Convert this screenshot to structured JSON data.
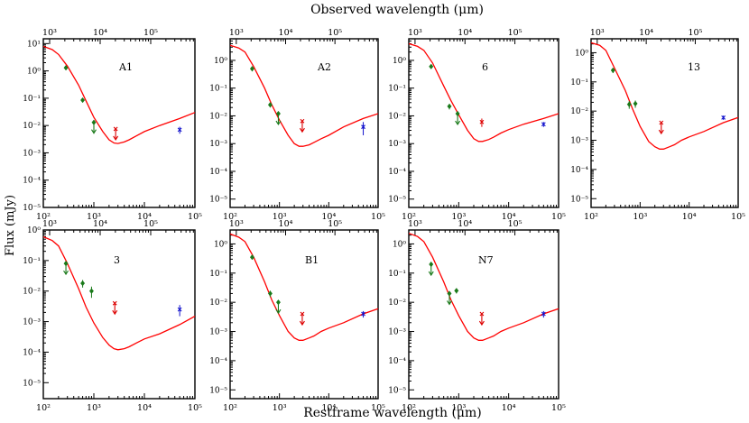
{
  "figure": {
    "top_label": "Observed wavelength (μm)",
    "bottom_label": "Restframe wavelength (μm)",
    "y_label": "Flux (mJy)"
  },
  "chart_data": [
    {
      "type": "line",
      "name": "A1",
      "title": "A1",
      "xlabel": "Restframe wavelength (μm)",
      "x2label": "Observed wavelength (μm)",
      "ylabel": "Flux (mJy)",
      "xscale": "log",
      "yscale": "log",
      "xlim": [
        100,
        100000
      ],
      "ylim": [
        1e-05,
        15
      ],
      "bottom_ticks": [
        "10^2",
        "10^3",
        "10^4",
        "10^5"
      ],
      "top_ticks": [
        "10^3",
        "10^4",
        "10^5"
      ],
      "y_ticks": [
        "10^1",
        "10^0",
        "10^-1",
        "10^-2",
        "10^-3",
        "10^-4",
        "10^-5"
      ],
      "model_curve": {
        "color": "#ff0000",
        "x": [
          100,
          150,
          200,
          300,
          500,
          700,
          1000,
          1500,
          2000,
          2500,
          3000,
          4000,
          5000,
          7000,
          10000,
          20000,
          50000,
          100000
        ],
        "y": [
          8,
          6,
          4,
          1.5,
          0.3,
          0.08,
          0.02,
          0.006,
          0.003,
          0.0023,
          0.0022,
          0.0025,
          0.003,
          0.0042,
          0.006,
          0.01,
          0.018,
          0.03
        ]
      },
      "green_points": [
        {
          "x": 280,
          "y": 1.3,
          "err": 0.15
        },
        {
          "x": 600,
          "y": 0.085,
          "err": 0.01
        },
        {
          "x": 1000,
          "y": 0.013,
          "upper_limit": true
        }
      ],
      "red_point": {
        "x": 2700,
        "y": 0.0075,
        "upper_limit": true
      },
      "blue_point": {
        "x": 50000,
        "y": 0.007,
        "err": 0.002
      }
    },
    {
      "type": "line",
      "name": "A2",
      "title": "A2",
      "xscale": "log",
      "yscale": "log",
      "xlim": [
        100,
        100000
      ],
      "ylim": [
        5e-06,
        6
      ],
      "bottom_ticks": [
        "10^2",
        "10^3",
        "10^4",
        "10^5"
      ],
      "top_ticks": [
        "10^3",
        "10^4",
        "10^5"
      ],
      "y_ticks": [
        "10^0",
        "10^-1",
        "10^-2",
        "10^-3",
        "10^-4",
        "10^-5"
      ],
      "model_curve": {
        "color": "#ff0000",
        "x": [
          100,
          150,
          200,
          300,
          500,
          700,
          1000,
          1500,
          2000,
          2500,
          3000,
          4000,
          5000,
          7000,
          10000,
          20000,
          50000,
          100000
        ],
        "y": [
          3.5,
          2.8,
          2,
          0.6,
          0.1,
          0.025,
          0.007,
          0.002,
          0.001,
          0.0008,
          0.0008,
          0.0009,
          0.0011,
          0.0015,
          0.002,
          0.004,
          0.008,
          0.012
        ]
      },
      "green_points": [
        {
          "x": 280,
          "y": 0.5,
          "err": 0.1
        },
        {
          "x": 650,
          "y": 0.025,
          "err": 0.005
        },
        {
          "x": 950,
          "y": 0.012,
          "upper_limit": true
        }
      ],
      "red_point": {
        "x": 2900,
        "y": 0.0065,
        "upper_limit": true
      },
      "blue_point": {
        "x": 50000,
        "y": 0.004,
        "err": 0.002
      }
    },
    {
      "type": "line",
      "name": "6",
      "title": "6",
      "xscale": "log",
      "yscale": "log",
      "xlim": [
        100,
        100000
      ],
      "ylim": [
        5e-06,
        6
      ],
      "bottom_ticks": [
        "10^2",
        "10^3",
        "10^4",
        "10^5"
      ],
      "top_ticks": [
        "10^3",
        "10^4",
        "10^5"
      ],
      "y_ticks": [
        "10^0",
        "10^-1",
        "10^-2",
        "10^-3",
        "10^-4",
        "10^-5"
      ],
      "model_curve": {
        "color": "#ff0000",
        "x": [
          100,
          150,
          200,
          300,
          500,
          700,
          1000,
          1500,
          2000,
          2500,
          3000,
          4000,
          5000,
          7000,
          10000,
          20000,
          50000,
          100000
        ],
        "y": [
          4,
          3.2,
          2.3,
          0.8,
          0.12,
          0.035,
          0.011,
          0.003,
          0.0015,
          0.0012,
          0.0012,
          0.0014,
          0.0017,
          0.0024,
          0.0032,
          0.005,
          0.008,
          0.012
        ]
      },
      "green_points": [
        {
          "x": 280,
          "y": 0.6,
          "err": 0.1
        },
        {
          "x": 650,
          "y": 0.022,
          "err": 0.005
        },
        {
          "x": 950,
          "y": 0.012,
          "upper_limit": true
        }
      ],
      "red_point": {
        "x": 2900,
        "y": 0.006,
        "err": 0.002
      },
      "blue_point": {
        "x": 50000,
        "y": 0.005,
        "err": 0.001
      }
    },
    {
      "type": "line",
      "name": "13",
      "title": "13",
      "xscale": "log",
      "yscale": "log",
      "xlim": [
        100,
        100000
      ],
      "ylim": [
        5e-06,
        3
      ],
      "bottom_ticks": [
        "10^2",
        "10^3",
        "10^4",
        "10^5"
      ],
      "top_ticks": [
        "10^3",
        "10^4",
        "10^5"
      ],
      "y_ticks": [
        "10^0",
        "10^-1",
        "10^-2",
        "10^-3",
        "10^-4",
        "10^-5"
      ],
      "model_curve": {
        "color": "#ff0000",
        "x": [
          100,
          150,
          200,
          300,
          500,
          700,
          1000,
          1500,
          2000,
          2500,
          3000,
          4000,
          5000,
          7000,
          10000,
          20000,
          50000,
          100000
        ],
        "y": [
          2.2,
          1.8,
          1.2,
          0.3,
          0.05,
          0.012,
          0.003,
          0.0009,
          0.0006,
          0.0005,
          0.0005,
          0.0006,
          0.0007,
          0.001,
          0.0013,
          0.002,
          0.004,
          0.006
        ]
      },
      "green_points": [
        {
          "x": 280,
          "y": 0.25,
          "err": 0.05
        },
        {
          "x": 600,
          "y": 0.017,
          "err": 0.005
        },
        {
          "x": 800,
          "y": 0.018,
          "err": 0.005
        }
      ],
      "red_point": {
        "x": 2700,
        "y": 0.004,
        "upper_limit": true
      },
      "blue_point": {
        "x": 50000,
        "y": 0.006,
        "err": 0.001
      }
    },
    {
      "type": "line",
      "name": "3",
      "title": "3",
      "xscale": "log",
      "yscale": "log",
      "xlim": [
        100,
        100000
      ],
      "ylim": [
        3e-06,
        1
      ],
      "bottom_ticks": [
        "10^2",
        "10^3",
        "10^4",
        "10^5"
      ],
      "top_ticks": [
        "10^3",
        "10^4",
        "10^5"
      ],
      "y_ticks": [
        "10^0",
        "10^-1",
        "10^-2",
        "10^-3",
        "10^-4",
        "10^-5"
      ],
      "model_curve": {
        "color": "#ff0000",
        "x": [
          100,
          150,
          200,
          300,
          500,
          700,
          1000,
          1500,
          2000,
          2500,
          3000,
          4000,
          5000,
          7000,
          10000,
          20000,
          50000,
          100000
        ],
        "y": [
          0.6,
          0.45,
          0.3,
          0.08,
          0.012,
          0.003,
          0.0009,
          0.0003,
          0.00017,
          0.00013,
          0.00012,
          0.00013,
          0.00015,
          0.0002,
          0.00027,
          0.0004,
          0.0008,
          0.0015
        ]
      },
      "green_points": [
        {
          "x": 280,
          "y": 0.08,
          "upper_limit": true
        },
        {
          "x": 600,
          "y": 0.018,
          "err": 0.005
        },
        {
          "x": 900,
          "y": 0.01,
          "err": 0.004
        }
      ],
      "red_point": {
        "x": 2600,
        "y": 0.004,
        "upper_limit": true
      },
      "blue_point": {
        "x": 50000,
        "y": 0.0025,
        "err": 0.001
      }
    },
    {
      "type": "line",
      "name": "B1",
      "title": "B1",
      "xscale": "log",
      "yscale": "log",
      "xlim": [
        100,
        100000
      ],
      "ylim": [
        5e-06,
        3
      ],
      "bottom_ticks": [
        "10^2",
        "10^3",
        "10^4",
        "10^5"
      ],
      "top_ticks": [
        "10^3",
        "10^4",
        "10^5"
      ],
      "y_ticks": [
        "10^0",
        "10^-1",
        "10^-2",
        "10^-3",
        "10^-4",
        "10^-5"
      ],
      "model_curve": {
        "color": "#ff0000",
        "x": [
          100,
          150,
          200,
          300,
          500,
          700,
          1000,
          1500,
          2000,
          2500,
          3000,
          4000,
          5000,
          7000,
          10000,
          20000,
          50000,
          100000
        ],
        "y": [
          2.2,
          1.7,
          1.2,
          0.35,
          0.05,
          0.012,
          0.0035,
          0.001,
          0.0006,
          0.0005,
          0.0005,
          0.0006,
          0.0007,
          0.001,
          0.0013,
          0.002,
          0.004,
          0.006
        ]
      },
      "green_points": [
        {
          "x": 280,
          "y": 0.35,
          "err": 0.05
        },
        {
          "x": 650,
          "y": 0.02,
          "err": 0.005
        },
        {
          "x": 950,
          "y": 0.01,
          "upper_limit": true
        }
      ],
      "red_point": {
        "x": 2900,
        "y": 0.004,
        "upper_limit": true
      },
      "blue_point": {
        "x": 50000,
        "y": 0.004,
        "err": 0.001
      }
    },
    {
      "type": "line",
      "name": "N7",
      "title": "N7",
      "xscale": "log",
      "yscale": "log",
      "xlim": [
        100,
        100000
      ],
      "ylim": [
        5e-06,
        3
      ],
      "bottom_ticks": [
        "10^2",
        "10^3",
        "10^4",
        "10^5"
      ],
      "top_ticks": [
        "10^3",
        "10^4",
        "10^5"
      ],
      "y_ticks": [
        "10^0",
        "10^-1",
        "10^-2",
        "10^-3",
        "10^-4",
        "10^-5"
      ],
      "model_curve": {
        "color": "#ff0000",
        "x": [
          100,
          150,
          200,
          300,
          500,
          700,
          1000,
          1500,
          2000,
          2500,
          3000,
          4000,
          5000,
          7000,
          10000,
          20000,
          50000,
          100000
        ],
        "y": [
          2.3,
          1.8,
          1.2,
          0.35,
          0.05,
          0.012,
          0.0035,
          0.001,
          0.0006,
          0.0005,
          0.0005,
          0.0006,
          0.0007,
          0.001,
          0.0013,
          0.002,
          0.004,
          0.006
        ]
      },
      "green_points": [
        {
          "x": 280,
          "y": 0.2,
          "upper_limit": true
        },
        {
          "x": 650,
          "y": 0.02,
          "upper_limit": true
        },
        {
          "x": 900,
          "y": 0.025,
          "err": 0.005
        }
      ],
      "red_point": {
        "x": 2900,
        "y": 0.004,
        "upper_limit": true
      },
      "blue_point": {
        "x": 50000,
        "y": 0.004,
        "err": 0.001
      }
    }
  ]
}
